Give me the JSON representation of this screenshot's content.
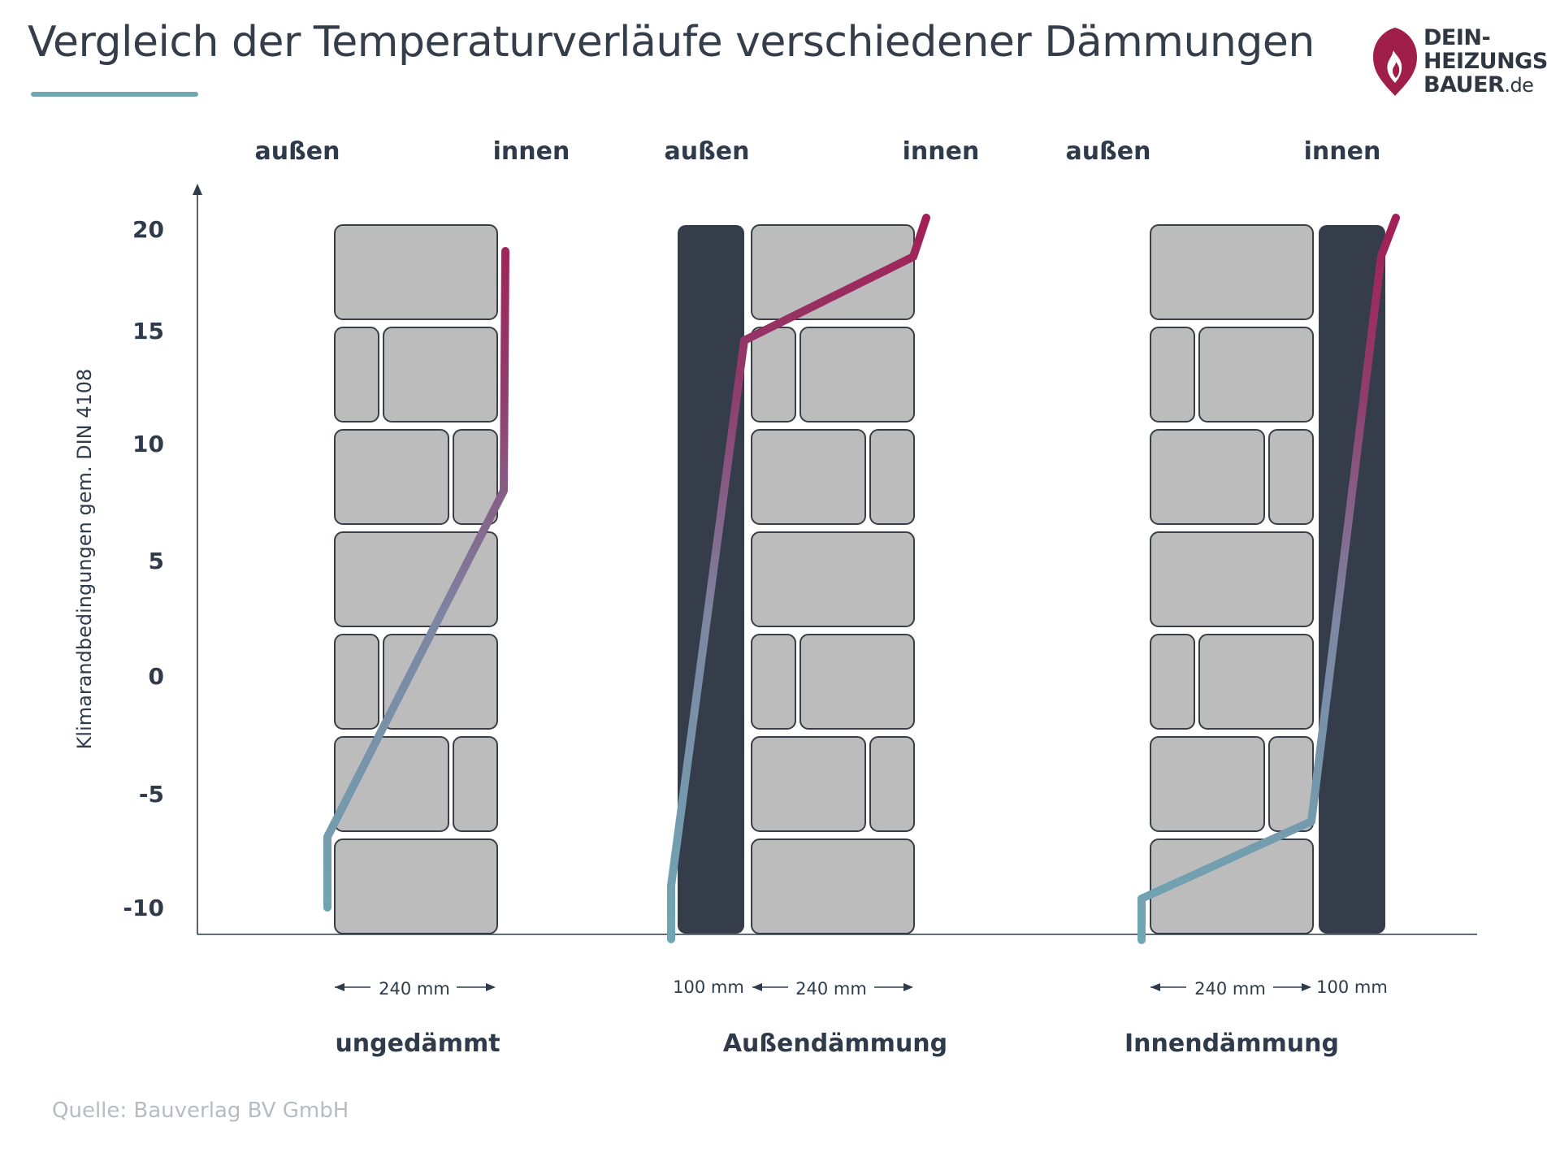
{
  "header": {
    "title": "Vergleich der Temperaturverläufe verschiedener Dämmungen"
  },
  "logo": {
    "line1": "DEIN-",
    "line2": "HEIZUNGS",
    "line3": "BAUER",
    "line3_suffix": ".de",
    "flame_color": "#a01e4a"
  },
  "axis": {
    "y_label": "Klimarandbedingungen gem. DIN 4108",
    "ticks": [
      "20",
      "15",
      "10",
      "5",
      "0",
      "-5",
      "-10"
    ]
  },
  "panels": [
    {
      "outside_label": "außen",
      "inside_label": "innen",
      "caption": "ungedämmt",
      "dimensions": [
        "240 mm"
      ],
      "insulation": "none"
    },
    {
      "outside_label": "außen",
      "inside_label": "innen",
      "caption": "Außendämmung",
      "dimensions": [
        "100 mm",
        "240 mm"
      ],
      "insulation": "outside"
    },
    {
      "outside_label": "außen",
      "inside_label": "innen",
      "caption": "Innendämmung",
      "dimensions": [
        "240 mm",
        "100 mm"
      ],
      "insulation": "inside"
    }
  ],
  "colors": {
    "cold": "#6fa7b3",
    "warm": "#a31f55",
    "insulation": "#353d4a",
    "brick": "#bcbcbc",
    "brick_border": "#3a3f47",
    "title_accent": "#6fa7b3"
  },
  "source": "Quelle: Bauverlag BV GmbH"
}
